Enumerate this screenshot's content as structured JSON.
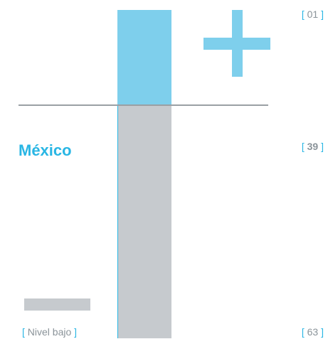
{
  "colors": {
    "upper": "#7ecfec",
    "lower": "#c6cace",
    "accent": "#29b6e4",
    "line": "#9aa0a4"
  },
  "chart_data": {
    "type": "bar",
    "ranks": {
      "top": "01",
      "country": "39",
      "bottom": "63"
    },
    "country": "México",
    "level_label": "Nivel bajo",
    "rank_min": 1,
    "rank_max": 63,
    "country_rank": 39
  },
  "icons": {
    "plus": "plus-icon",
    "minus": "minus-icon"
  }
}
